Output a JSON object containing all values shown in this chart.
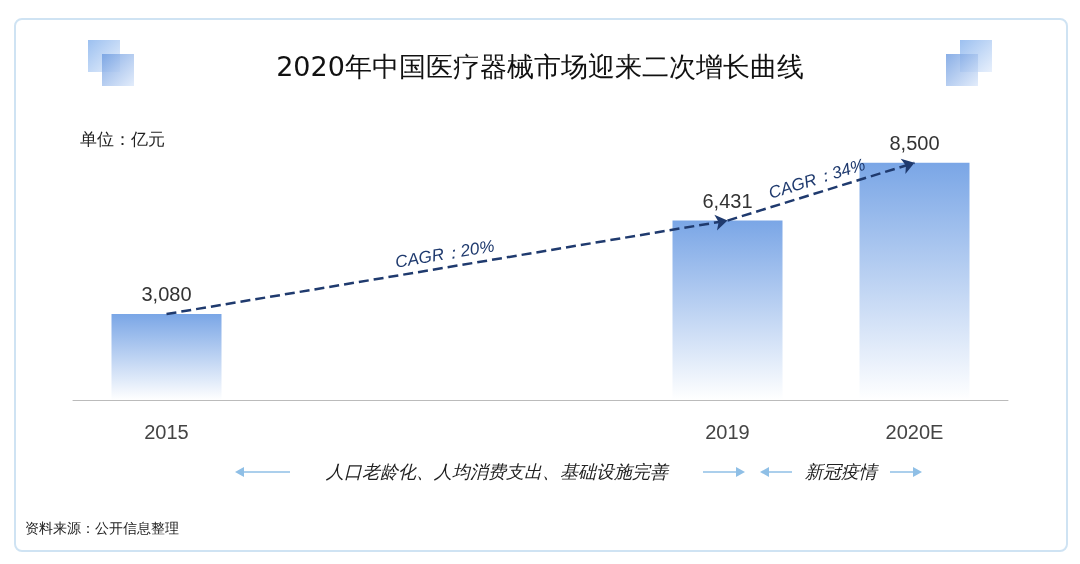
{
  "chart_data": {
    "type": "bar",
    "title": "2020年中国医疗器械市场迎来二次增长曲线",
    "ylabel": "单位：亿元",
    "categories": [
      "2015",
      null,
      null,
      "2019",
      "2020E"
    ],
    "values": [
      3080,
      null,
      null,
      6431,
      8500
    ],
    "value_labels": [
      "3,080",
      null,
      null,
      "6,431",
      "8,500"
    ],
    "color": "#7aa6e6",
    "grid": false,
    "tick_labels": "x",
    "annotations": [
      "CAGR：20%",
      "CAGR：34%",
      "人口老龄化、人均消费支出、基础设施完善",
      "新冠疫情",
      "资料来源：公开信息整理"
    ]
  }
}
